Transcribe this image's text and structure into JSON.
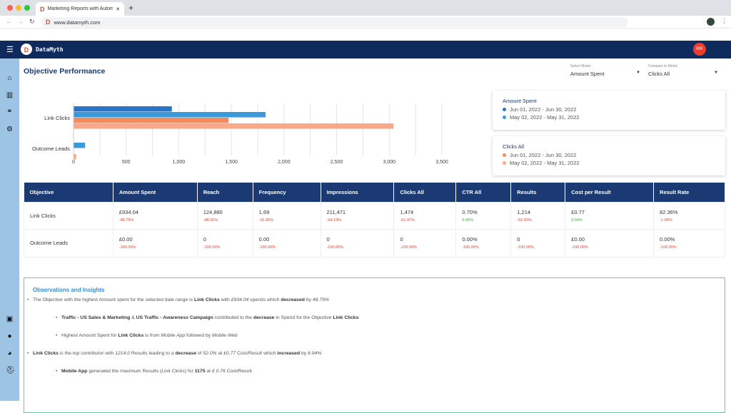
{
  "browser": {
    "tab_title": "Marketing Reports with Automa",
    "url": "www.datamyth.com"
  },
  "app": {
    "name": "DataMyth",
    "avatar": "RR"
  },
  "sidebar": {
    "icons": [
      "home-icon",
      "chart-icon",
      "network-icon",
      "settings-icon",
      "video-icon",
      "help-icon",
      "chat-icon",
      "support-icon"
    ]
  },
  "page": {
    "title": "Objective Performance"
  },
  "selectors": {
    "metric": {
      "label": "Select Metric",
      "value": "Amount Spent"
    },
    "compare": {
      "label": "Compare to Metric",
      "value": "Clicks All"
    }
  },
  "legend": [
    {
      "title": "Amount Spent",
      "items": [
        {
          "label": "Jun 01, 2022 - Jun 30, 2022",
          "color": "#2874c8"
        },
        {
          "label": "May 02, 2022 - May 31, 2022",
          "color": "#3a9ad9"
        }
      ]
    },
    {
      "title": "Clicks All",
      "items": [
        {
          "label": "Jun 01, 2022 - Jun 30, 2022",
          "color": "#f58b5c"
        },
        {
          "label": "May 02, 2022 - May 31, 2022",
          "color": "#f9a98a"
        }
      ]
    }
  ],
  "chart_data": {
    "type": "bar",
    "orientation": "horizontal",
    "categories": [
      "Link Clicks",
      "Outcome Leads"
    ],
    "series": [
      {
        "values": [
          934,
          0
        ],
        "color": "#2874c8"
      },
      {
        "values": [
          1825,
          110
        ],
        "color": "#3a9ad9"
      },
      {
        "values": [
          1474,
          0
        ],
        "color": "#f58b5c"
      },
      {
        "values": [
          3040,
          25
        ],
        "color": "#f9a98a"
      }
    ],
    "xlim": [
      0,
      3500
    ],
    "ticks": [
      "0",
      "500",
      "1,000",
      "1,500",
      "2,000",
      "2,500",
      "3,000",
      "3,500"
    ],
    "grid": true
  },
  "table": {
    "headers": [
      "Objective",
      "Amount Spent",
      "Reach",
      "Frequency",
      "Impressions",
      "Clicks All",
      "CTR All",
      "Results",
      "Cost per Result",
      "Result Rate"
    ],
    "rows": [
      {
        "objective": "Link Clicks",
        "cells": [
          [
            "£934.04",
            "-48.79%",
            "neg"
          ],
          [
            "124,880",
            "-48.55%",
            "neg"
          ],
          [
            "1.69",
            "-11.05%",
            "neg"
          ],
          [
            "211,471",
            "-54.19%",
            "neg"
          ],
          [
            "1,474",
            "-51.47%",
            "neg"
          ],
          [
            "0.70%",
            "6.06%",
            "pos"
          ],
          [
            "1,214",
            "-52.00%",
            "neg"
          ],
          [
            "£0.77",
            "6.94%",
            "pos"
          ],
          [
            "82.36%",
            "-1.09%",
            "neg"
          ]
        ]
      },
      {
        "objective": "Outcome Leads",
        "cells": [
          [
            "£0.00",
            "-100.00%",
            "neg"
          ],
          [
            "0",
            "-100.00%",
            "neg"
          ],
          [
            "0.00",
            "-100.00%",
            "neg"
          ],
          [
            "0",
            "-100.00%",
            "neg"
          ],
          [
            "0",
            "-100.00%",
            "neg"
          ],
          [
            "0.00%",
            "-100.00%",
            "neg"
          ],
          [
            "0",
            "-100.00%",
            "neg"
          ],
          [
            "£0.00",
            "-100.00%",
            "neg"
          ],
          [
            "0.00%",
            "-100.00%",
            "neg"
          ]
        ]
      }
    ],
    "colors": {
      "neg": "#e0463a",
      "pos": "#3fae3f"
    }
  },
  "insights": {
    "title": "Observations and Insights",
    "items": [
      {
        "level": 1,
        "parts": [
          [
            "The Objective with the highest Amount spent for the selected date range is ",
            ""
          ],
          [
            "Link Clicks",
            "b"
          ],
          [
            " with ",
            ""
          ],
          [
            "£934.04",
            "i"
          ],
          [
            " spends which ",
            ""
          ],
          [
            "decreased",
            "b"
          ],
          [
            " by ",
            ""
          ],
          [
            "48.79%",
            "i"
          ]
        ]
      },
      {
        "level": 2,
        "parts": [
          [
            "Traffic - US Sales & Marketing",
            "b"
          ],
          [
            " & ",
            ""
          ],
          [
            "US Traffic - Awareness Campaign",
            "b"
          ],
          [
            " contributed to the ",
            ""
          ],
          [
            "decrease",
            "b"
          ],
          [
            " in Spend for the Objective ",
            ""
          ],
          [
            "Link Clicks",
            "b"
          ]
        ]
      },
      {
        "level": 2,
        "parts": [
          [
            "Highest Amount Spent for ",
            ""
          ],
          [
            "Link Clicks",
            "b"
          ],
          [
            " is from ",
            ""
          ],
          [
            "Mobile App",
            "i"
          ],
          [
            " followed by ",
            ""
          ],
          [
            "Mobile Web",
            "i"
          ]
        ]
      },
      {
        "level": 1,
        "parts": [
          [
            "Link Clicks",
            "b"
          ],
          [
            " is the top contributor with ",
            ""
          ],
          [
            "1214.0",
            "i"
          ],
          [
            " Results leading to a ",
            ""
          ],
          [
            "decrease",
            "b"
          ],
          [
            " of ",
            ""
          ],
          [
            "52.0%",
            "i"
          ],
          [
            " at ",
            ""
          ],
          [
            "£0.77",
            "i"
          ],
          [
            " Cost/Result which ",
            ""
          ],
          [
            "increased",
            "b"
          ],
          [
            " by ",
            ""
          ],
          [
            "6.94%",
            "i"
          ]
        ]
      },
      {
        "level": 2,
        "parts": [
          [
            "Mobile App",
            "b"
          ],
          [
            " generated the maximum Results (",
            ""
          ],
          [
            "Link Clicks",
            "i"
          ],
          [
            ") for ",
            ""
          ],
          [
            "1175",
            "b"
          ],
          [
            " at ",
            ""
          ],
          [
            "£ 0.76",
            "i"
          ],
          [
            " Cost/Result",
            ""
          ]
        ]
      }
    ]
  }
}
